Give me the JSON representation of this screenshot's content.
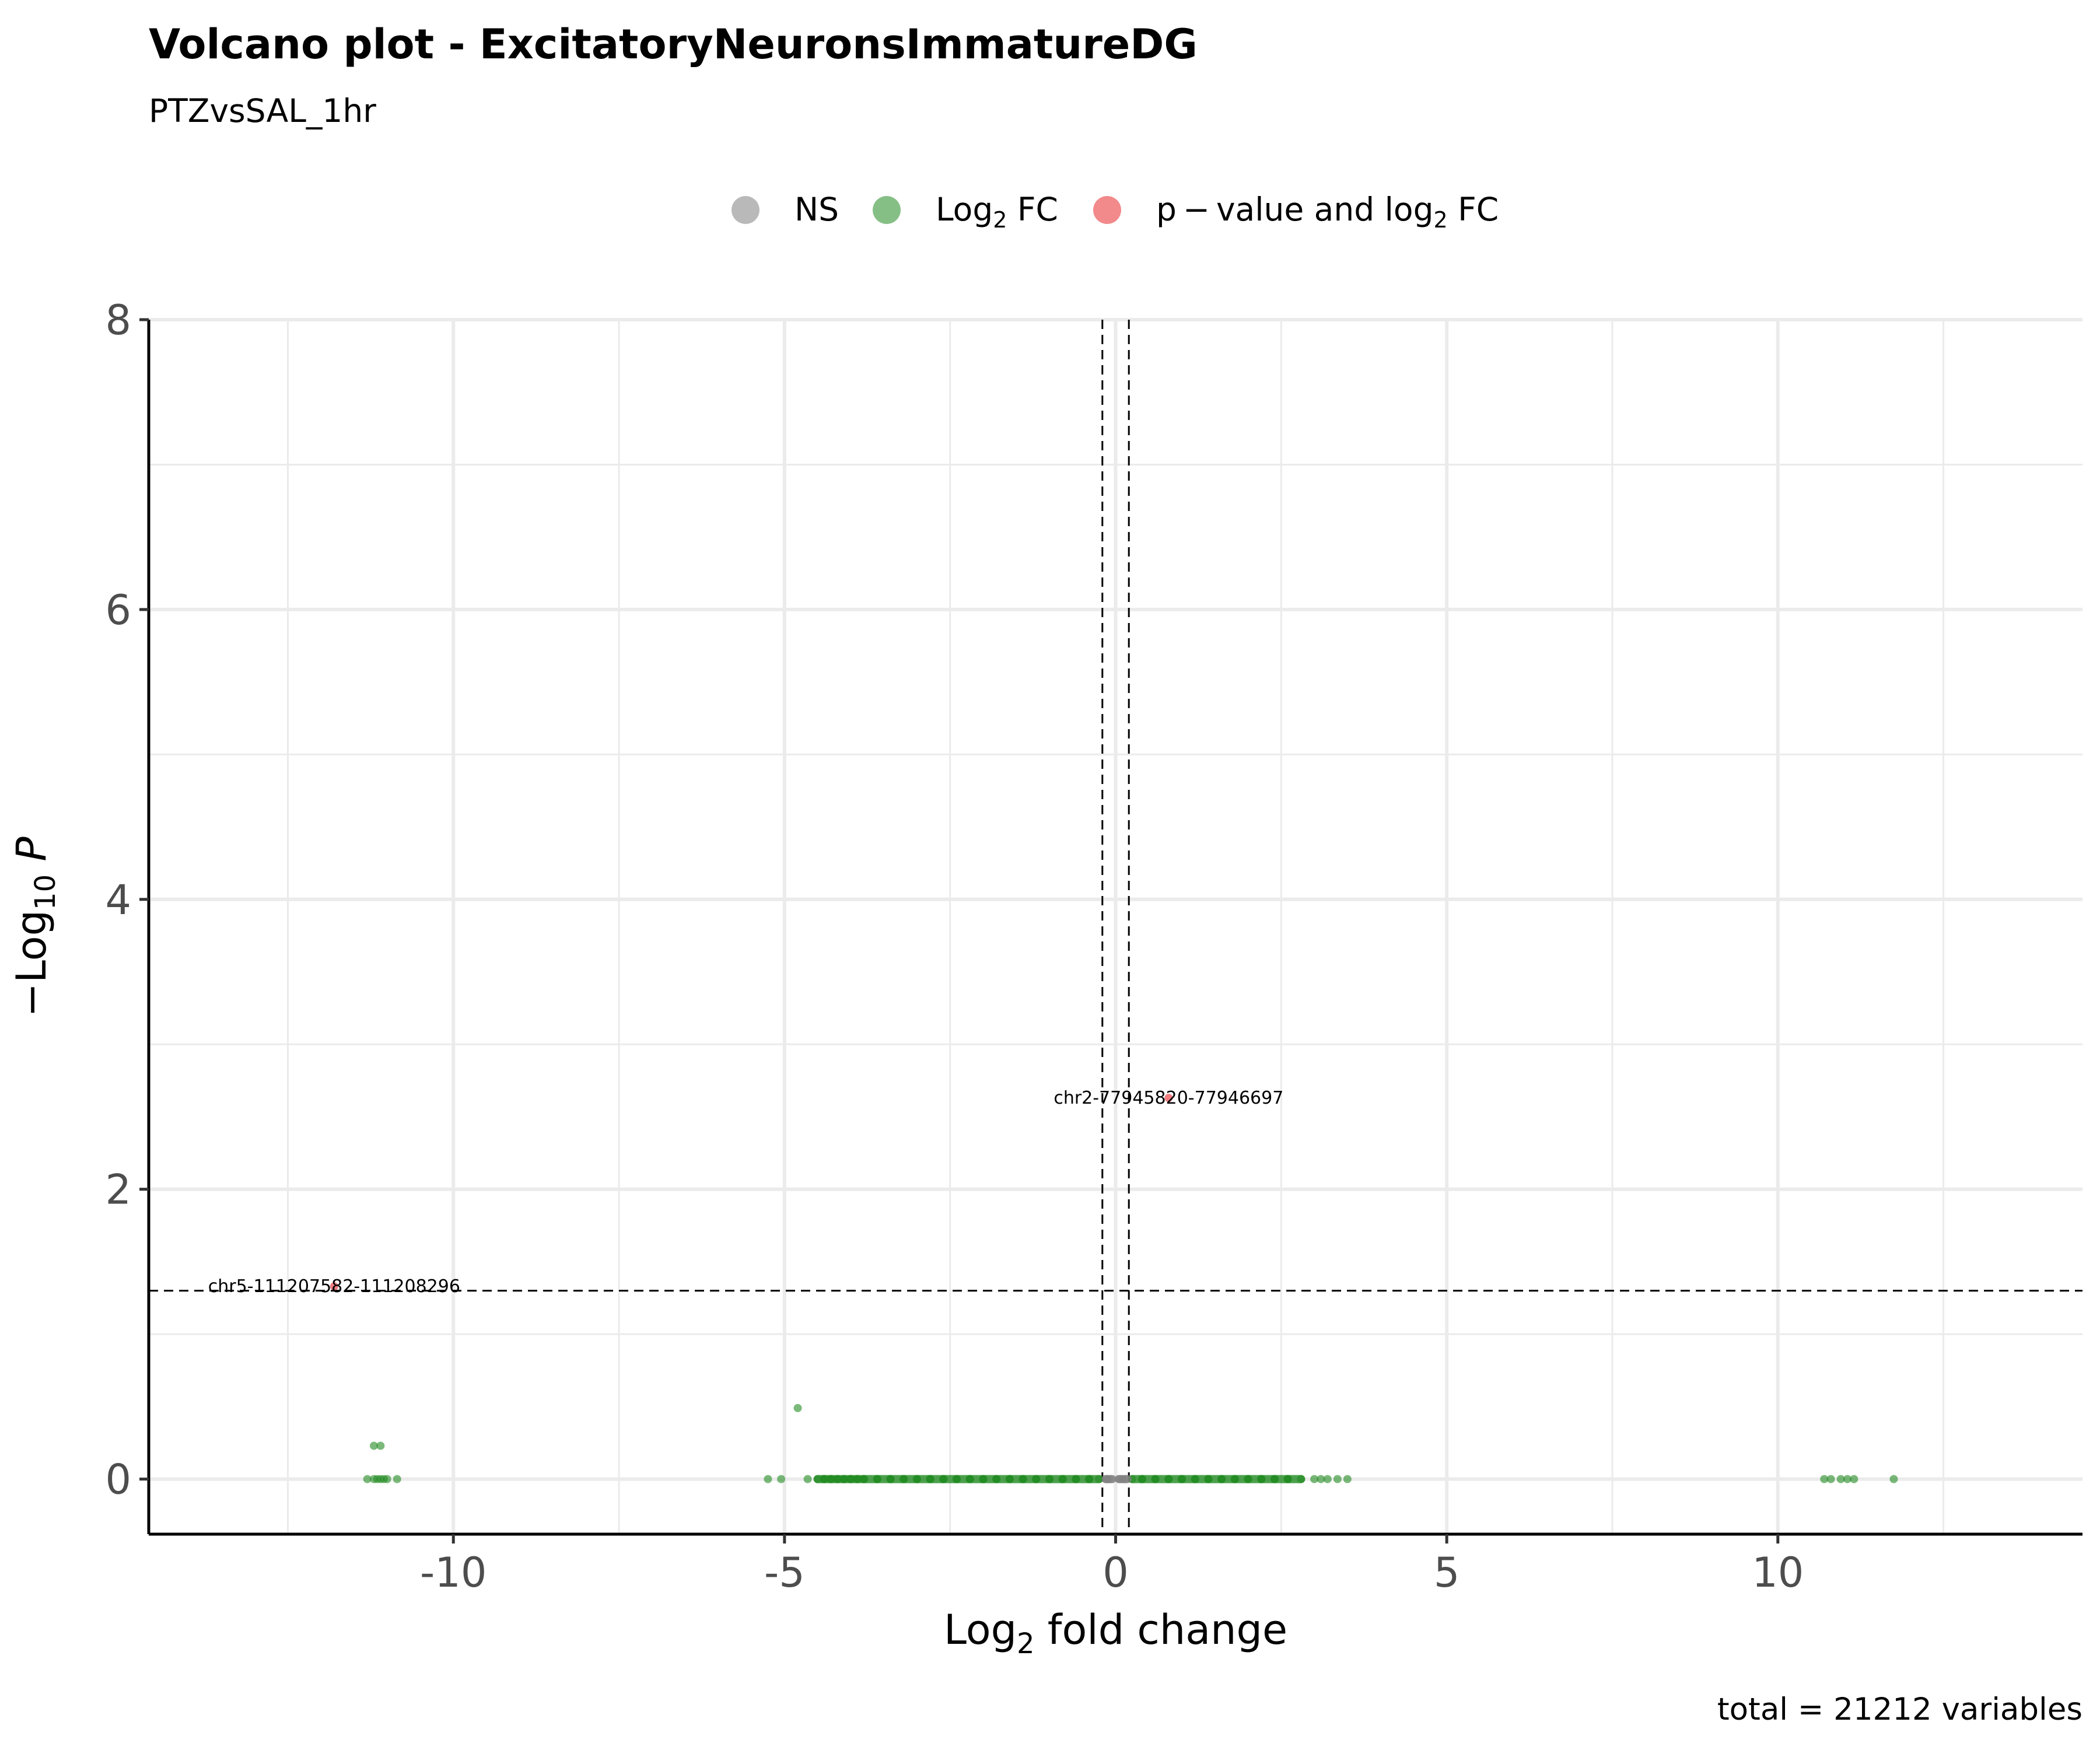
{
  "title": "Volcano plot - ExcitatoryNeuronsImmatureDG",
  "subtitle": "PTZvsSAL_1hr",
  "caption": "total = 21212 variables",
  "chart_data": {
    "type": "scatter",
    "xlabel": "Log",
    "xlabel_sub": "2",
    "xlabel_rest": " fold change",
    "ylabel": "−Log",
    "ylabel_sub": "10",
    "ylabel_italic": "P",
    "xlim": [
      -14.6,
      14.6
    ],
    "ylim": [
      -0.38,
      8
    ],
    "x_ticks": [
      -10,
      -5,
      0,
      5,
      10
    ],
    "x_tick_labels": [
      "-10",
      "-5",
      "0",
      "5",
      "10"
    ],
    "y_ticks": [
      0,
      2,
      4,
      6,
      8
    ],
    "y_tick_labels": [
      "0",
      "2",
      "4",
      "6",
      "8"
    ],
    "grid": true,
    "legend_position": "top",
    "thresholds": {
      "fc_cutoff": [
        -0.2,
        0.2
      ],
      "p_cutoff": 1.3
    },
    "legend": [
      {
        "key": "ns",
        "label": "NS",
        "color": "#808080"
      },
      {
        "key": "fc",
        "label": "Log",
        "sub": "2",
        "rest": " FC",
        "color": "#228B22"
      },
      {
        "key": "pfc",
        "label": "p − value and log",
        "sub": "2",
        "rest": " FC",
        "color": "#E8282B"
      }
    ],
    "series": [
      {
        "name": "NS",
        "color": "#808080",
        "points": [
          [
            -0.15,
            0
          ],
          [
            -0.12,
            0
          ],
          [
            -0.08,
            0
          ],
          [
            0.05,
            0
          ],
          [
            0.1,
            0
          ],
          [
            0.15,
            0
          ]
        ]
      },
      {
        "name": "Log2 FC",
        "color": "#228B22",
        "points": [
          [
            -11.2,
            0.23
          ],
          [
            -11.1,
            0.23
          ],
          [
            -11.3,
            0
          ],
          [
            -11.2,
            0
          ],
          [
            -11.15,
            0
          ],
          [
            -11.1,
            0
          ],
          [
            -11.05,
            0
          ],
          [
            -11.0,
            0
          ],
          [
            -10.85,
            0
          ],
          [
            -4.8,
            0.49
          ],
          [
            -5.25,
            0
          ],
          [
            -5.05,
            0
          ],
          [
            -4.65,
            0
          ],
          [
            -4.5,
            0
          ],
          [
            -4.4,
            0
          ],
          [
            -4.3,
            0
          ],
          [
            -4.2,
            0
          ],
          [
            -4.1,
            0
          ],
          [
            -4.0,
            0
          ],
          [
            -3.9,
            0
          ],
          [
            -3.8,
            0
          ],
          [
            -3.6,
            0
          ],
          [
            -3.4,
            0
          ],
          [
            -3.2,
            0
          ],
          [
            -3.0,
            0
          ],
          [
            -2.8,
            0
          ],
          [
            -2.6,
            0
          ],
          [
            -2.4,
            0
          ],
          [
            -2.2,
            0
          ],
          [
            -2.0,
            0
          ],
          [
            -1.8,
            0
          ],
          [
            -1.6,
            0
          ],
          [
            -1.4,
            0
          ],
          [
            -1.2,
            0
          ],
          [
            -1.0,
            0
          ],
          [
            -0.8,
            0
          ],
          [
            -0.6,
            0
          ],
          [
            -0.4,
            0
          ],
          [
            -0.25,
            0
          ],
          [
            0.25,
            0
          ],
          [
            0.4,
            0
          ],
          [
            0.6,
            0
          ],
          [
            0.8,
            0
          ],
          [
            1.0,
            0
          ],
          [
            1.2,
            0
          ],
          [
            1.4,
            0
          ],
          [
            1.6,
            0
          ],
          [
            1.8,
            0
          ],
          [
            2.0,
            0
          ],
          [
            2.2,
            0
          ],
          [
            2.4,
            0
          ],
          [
            2.6,
            0
          ],
          [
            2.8,
            0
          ],
          [
            3.0,
            0
          ],
          [
            3.1,
            0
          ],
          [
            3.2,
            0
          ],
          [
            3.35,
            0
          ],
          [
            3.5,
            0
          ],
          [
            10.7,
            0
          ],
          [
            10.8,
            0
          ],
          [
            10.95,
            0
          ],
          [
            11.05,
            0
          ],
          [
            11.15,
            0
          ],
          [
            11.75,
            0
          ]
        ]
      },
      {
        "name": "p-value and log2 FC",
        "color": "#E8282B",
        "points": [
          [
            0.8,
            2.63
          ],
          [
            -11.8,
            1.33
          ]
        ]
      }
    ],
    "labels": [
      {
        "text": "chr2-77945820-77946697",
        "x": 0.8,
        "y": 2.63
      },
      {
        "text": "chr5-111207582-111208296",
        "x": -11.8,
        "y": 1.33
      }
    ]
  }
}
